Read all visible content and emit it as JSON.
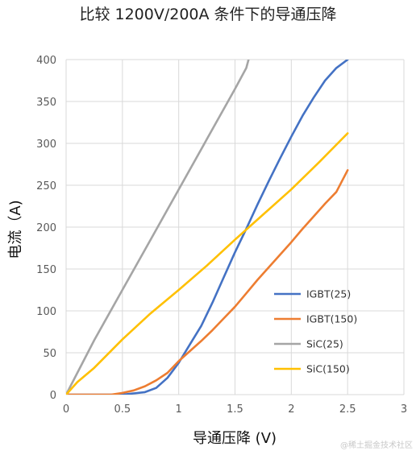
{
  "chart_data": {
    "type": "line",
    "title": "比较 1200V/200A 条件下的导通压降",
    "xlabel": "导通压降 (V)",
    "ylabel": "电流（A)",
    "xlim": [
      0,
      3
    ],
    "ylim": [
      0,
      400
    ],
    "x_ticks": [
      "0",
      "0.5",
      "1",
      "1.5",
      "2",
      "2.5",
      "3"
    ],
    "y_ticks": [
      "0",
      "50",
      "100",
      "150",
      "200",
      "250",
      "300",
      "350",
      "400"
    ],
    "grid": true,
    "legend_position": "lower-right",
    "series": [
      {
        "name": "IGBT(25)",
        "color": "#4472C4",
        "points": [
          [
            0,
            0
          ],
          [
            0.3,
            0
          ],
          [
            0.5,
            0
          ],
          [
            0.7,
            3
          ],
          [
            0.8,
            8
          ],
          [
            0.9,
            20
          ],
          [
            1.0,
            38
          ],
          [
            1.1,
            60
          ],
          [
            1.2,
            82
          ],
          [
            1.3,
            110
          ],
          [
            1.4,
            140
          ],
          [
            1.5,
            170
          ],
          [
            1.6,
            198
          ],
          [
            1.7,
            227
          ],
          [
            1.8,
            255
          ],
          [
            1.9,
            282
          ],
          [
            2.0,
            308
          ],
          [
            2.1,
            333
          ],
          [
            2.2,
            355
          ],
          [
            2.3,
            375
          ],
          [
            2.4,
            390
          ],
          [
            2.5,
            400
          ]
        ]
      },
      {
        "name": "IGBT(150)",
        "color": "#ED7D31",
        "points": [
          [
            0,
            0
          ],
          [
            0.2,
            0
          ],
          [
            0.4,
            0
          ],
          [
            0.5,
            2
          ],
          [
            0.6,
            5
          ],
          [
            0.7,
            10
          ],
          [
            0.8,
            17
          ],
          [
            0.9,
            26
          ],
          [
            1.0,
            40
          ],
          [
            1.1,
            52
          ],
          [
            1.2,
            64
          ],
          [
            1.3,
            77
          ],
          [
            1.4,
            91
          ],
          [
            1.5,
            105
          ],
          [
            1.6,
            121
          ],
          [
            1.7,
            137
          ],
          [
            1.8,
            152
          ],
          [
            1.9,
            167
          ],
          [
            2.0,
            182
          ],
          [
            2.1,
            198
          ],
          [
            2.2,
            213
          ],
          [
            2.3,
            228
          ],
          [
            2.4,
            242
          ],
          [
            2.5,
            268
          ]
        ]
      },
      {
        "name": "SiC(25)",
        "color": "#A5A5A5",
        "points": [
          [
            0,
            0
          ],
          [
            0.25,
            65
          ],
          [
            0.5,
            125
          ],
          [
            0.75,
            185
          ],
          [
            1.0,
            245
          ],
          [
            1.25,
            305
          ],
          [
            1.5,
            365
          ],
          [
            1.6,
            390
          ],
          [
            1.62,
            400
          ]
        ]
      },
      {
        "name": "SiC(150)",
        "color": "#FFC000",
        "points": [
          [
            0,
            0
          ],
          [
            0.1,
            15
          ],
          [
            0.25,
            32
          ],
          [
            0.5,
            66
          ],
          [
            0.75,
            97
          ],
          [
            1.0,
            125
          ],
          [
            1.25,
            154
          ],
          [
            1.5,
            185
          ],
          [
            1.75,
            215
          ],
          [
            2.0,
            245
          ],
          [
            2.25,
            278
          ],
          [
            2.5,
            312
          ]
        ]
      }
    ]
  },
  "watermark": "@稀土掘金技术社区"
}
